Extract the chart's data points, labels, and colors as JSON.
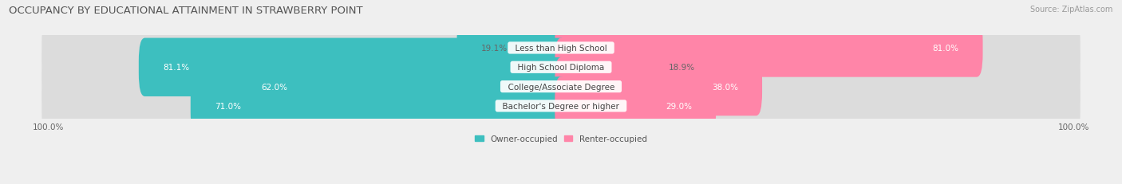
{
  "title": "OCCUPANCY BY EDUCATIONAL ATTAINMENT IN STRAWBERRY POINT",
  "source": "Source: ZipAtlas.com",
  "categories": [
    "Less than High School",
    "High School Diploma",
    "College/Associate Degree",
    "Bachelor's Degree or higher"
  ],
  "owner_pct": [
    19.1,
    81.1,
    62.0,
    71.0
  ],
  "renter_pct": [
    81.0,
    18.9,
    38.0,
    29.0
  ],
  "owner_color": "#3DBFBF",
  "renter_color": "#FF85A8",
  "bg_color": "#EFEFEF",
  "bar_bg_color": "#DCDCDC",
  "title_fontsize": 9.5,
  "source_fontsize": 7.0,
  "label_fontsize": 7.5,
  "legend_fontsize": 7.5,
  "axis_label_fontsize": 7.5,
  "bar_height": 0.62,
  "figsize": [
    14.06,
    2.32
  ],
  "dpi": 100
}
